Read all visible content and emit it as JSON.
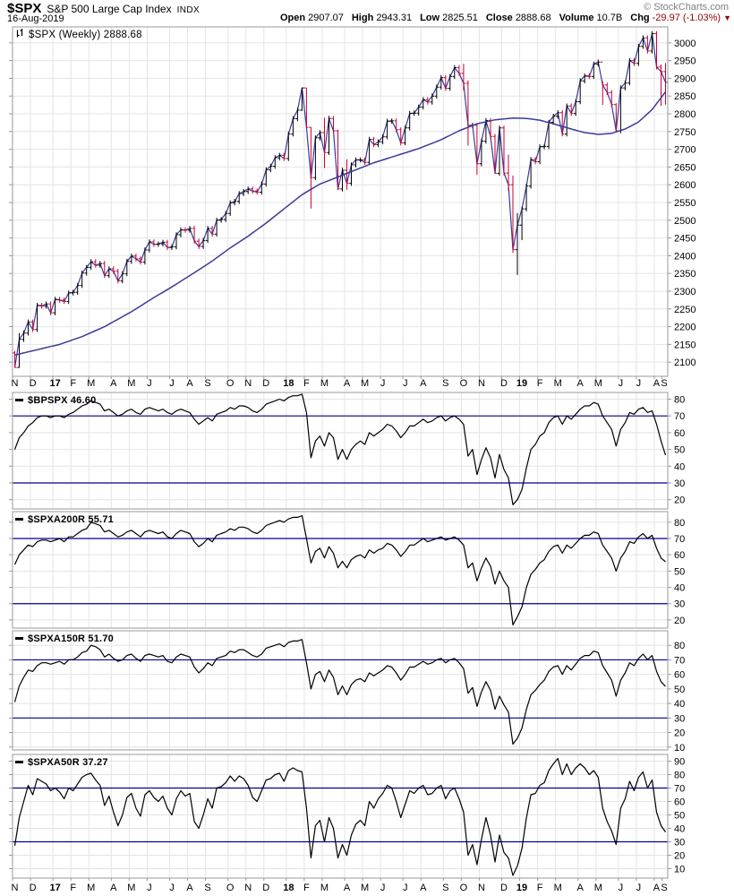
{
  "header": {
    "symbol": "$SPX",
    "name": "S&P 500 Large Cap Index",
    "exchange": "INDX",
    "copyright": "© StockCharts.com",
    "date": "16-Aug-2019",
    "quote": {
      "open_label": "Open",
      "open": "2907.07",
      "high_label": "High",
      "high": "2943.31",
      "low_label": "Low",
      "low": "2825.51",
      "close_label": "Close",
      "close": "2888.68",
      "volume_label": "Volume",
      "volume": "10.7B",
      "chg_label": "Chg",
      "chg": "-29.97 (-1.03%)",
      "chg_arrow": "▼"
    }
  },
  "legends": {
    "main": "$SPX (Weekly) 2888.68",
    "bpspx": "$BPSPX 46.60",
    "a200": "$SPXA200R 55.71",
    "a150": "$SPXA150R 51.70",
    "a50": "$SPXA50R 37.27"
  },
  "colors": {
    "up_bar": "#000000",
    "down_bar": "#cc0033",
    "close_line": "#3a3a9c",
    "ma_line": "#3a3a9c",
    "hline": "#000099",
    "indicator_line": "#000000",
    "grid": "#e4e4e4",
    "border": "#999999",
    "axis_text": "#000000",
    "chg_negative": "#990000",
    "copyright": "#808080"
  },
  "chart_data": {
    "type": "multi-panel",
    "x_axis": {
      "weeks_total": 146,
      "start": "Nov 2016",
      "end": "Aug 2019",
      "months": [
        {
          "label": "N",
          "week": 0
        },
        {
          "label": "D",
          "week": 4
        },
        {
          "label": "17",
          "week": 9,
          "year": true
        },
        {
          "label": "F",
          "week": 13
        },
        {
          "label": "M",
          "week": 17
        },
        {
          "label": "A",
          "week": 22
        },
        {
          "label": "M",
          "week": 26
        },
        {
          "label": "J",
          "week": 30
        },
        {
          "label": "J",
          "week": 35
        },
        {
          "label": "A",
          "week": 39
        },
        {
          "label": "S",
          "week": 43
        },
        {
          "label": "O",
          "week": 48
        },
        {
          "label": "N",
          "week": 52
        },
        {
          "label": "D",
          "week": 56
        },
        {
          "label": "18",
          "week": 61,
          "year": true
        },
        {
          "label": "F",
          "week": 65
        },
        {
          "label": "M",
          "week": 69
        },
        {
          "label": "A",
          "week": 74
        },
        {
          "label": "M",
          "week": 78
        },
        {
          "label": "J",
          "week": 82
        },
        {
          "label": "J",
          "week": 87
        },
        {
          "label": "A",
          "week": 91
        },
        {
          "label": "S",
          "week": 96
        },
        {
          "label": "O",
          "week": 100
        },
        {
          "label": "N",
          "week": 104
        },
        {
          "label": "D",
          "week": 109
        },
        {
          "label": "19",
          "week": 113,
          "year": true
        },
        {
          "label": "F",
          "week": 117
        },
        {
          "label": "M",
          "week": 121
        },
        {
          "label": "A",
          "week": 126
        },
        {
          "label": "M",
          "week": 130
        },
        {
          "label": "J",
          "week": 135
        },
        {
          "label": "J",
          "week": 139
        },
        {
          "label": "A",
          "week": 143
        },
        {
          "label": "S",
          "week": 146
        }
      ]
    },
    "main": {
      "name": "main-price-panel",
      "type": "ohlc",
      "title": "$SPX (Weekly)",
      "last": 2888.68,
      "y_range": [
        2060,
        3045
      ],
      "y_ticks": [
        2100,
        2150,
        2200,
        2250,
        2300,
        2350,
        2400,
        2450,
        2500,
        2550,
        2600,
        2650,
        2700,
        2750,
        2800,
        2850,
        2900,
        2950,
        3000
      ],
      "first_open": 2126,
      "close": [
        2085,
        2164,
        2182,
        2213,
        2192,
        2260,
        2258,
        2264,
        2239,
        2277,
        2275,
        2271,
        2295,
        2297,
        2316,
        2351,
        2367,
        2383,
        2373,
        2378,
        2344,
        2363,
        2356,
        2329,
        2349,
        2384,
        2399,
        2391,
        2382,
        2416,
        2439,
        2432,
        2433,
        2438,
        2423,
        2425,
        2459,
        2473,
        2472,
        2477,
        2441,
        2426,
        2443,
        2477,
        2461,
        2500,
        2502,
        2519,
        2549,
        2553,
        2575,
        2581,
        2588,
        2582,
        2579,
        2602,
        2642,
        2652,
        2676,
        2683,
        2674,
        2743,
        2786,
        2810,
        2873,
        2762,
        2620,
        2732,
        2747,
        2691,
        2787,
        2752,
        2588,
        2641,
        2604,
        2656,
        2670,
        2670,
        2663,
        2728,
        2713,
        2721,
        2735,
        2779,
        2780,
        2755,
        2718,
        2760,
        2801,
        2802,
        2819,
        2840,
        2833,
        2850,
        2875,
        2902,
        2872,
        2905,
        2930,
        2914,
        2886,
        2767,
        2768,
        2659,
        2723,
        2781,
        2736,
        2632,
        2760,
        2633,
        2600,
        2417,
        2486,
        2532,
        2596,
        2671,
        2665,
        2707,
        2708,
        2776,
        2793,
        2803,
        2743,
        2822,
        2801,
        2834,
        2893,
        2907,
        2905,
        2940,
        2946,
        2881,
        2860,
        2826,
        2752,
        2873,
        2887,
        2950,
        2942,
        2990,
        3014,
        2977,
        3026,
        2932,
        2919,
        2888.68
      ],
      "wick_overrides": {
        "0": [
          2132,
          2084
        ],
        "1": [
          2182,
          2084
        ],
        "64": [
          2873,
          2808
        ],
        "65": [
          2873,
          2760
        ],
        "66": [
          2763,
          2533
        ],
        "69": [
          2789,
          2647
        ],
        "72": [
          2755,
          2585
        ],
        "74": [
          2672,
          2586
        ],
        "100": [
          2941,
          2866
        ],
        "101": [
          2894,
          2710
        ],
        "103": [
          2772,
          2628
        ],
        "107": [
          2743,
          2631
        ],
        "110": [
          2685,
          2583
        ],
        "111": [
          2626,
          2408
        ],
        "112": [
          2520,
          2346
        ],
        "113": [
          2538,
          2444
        ],
        "131": [
          2892,
          2825
        ],
        "134": [
          2830,
          2750
        ],
        "144": [
          2939,
          2822
        ],
        "145": [
          2943,
          2826
        ]
      },
      "ma_anchors": [
        [
          0,
          2120
        ],
        [
          5,
          2135
        ],
        [
          10,
          2150
        ],
        [
          15,
          2172
        ],
        [
          20,
          2200
        ],
        [
          26,
          2242
        ],
        [
          31,
          2282
        ],
        [
          35,
          2312
        ],
        [
          40,
          2352
        ],
        [
          44,
          2385
        ],
        [
          48,
          2422
        ],
        [
          52,
          2455
        ],
        [
          56,
          2492
        ],
        [
          61,
          2542
        ],
        [
          64,
          2572
        ],
        [
          68,
          2602
        ],
        [
          72,
          2622
        ],
        [
          76,
          2642
        ],
        [
          80,
          2662
        ],
        [
          85,
          2682
        ],
        [
          90,
          2702
        ],
        [
          95,
          2727
        ],
        [
          99,
          2752
        ],
        [
          103,
          2772
        ],
        [
          107,
          2783
        ],
        [
          111,
          2788
        ],
        [
          114,
          2787
        ],
        [
          117,
          2782
        ],
        [
          120,
          2772
        ],
        [
          124,
          2757
        ],
        [
          127,
          2747
        ],
        [
          130,
          2742
        ],
        [
          133,
          2745
        ],
        [
          136,
          2757
        ],
        [
          139,
          2777
        ],
        [
          142,
          2812
        ],
        [
          145,
          2862
        ]
      ]
    },
    "indicators": [
      {
        "name": "bpspx-panel",
        "type": "line",
        "symbol": "$BPSPX",
        "value": 46.6,
        "y_range": [
          14.5,
          84
        ],
        "y_ticks": [
          20,
          30,
          40,
          50,
          60,
          70,
          80
        ],
        "hlines": [
          70,
          30
        ],
        "values": [
          50,
          57,
          60,
          64,
          66,
          69,
          70,
          70,
          69,
          70,
          70,
          69,
          71,
          72,
          74,
          76,
          77,
          79,
          78,
          77,
          73,
          74,
          72,
          70,
          71,
          73,
          74,
          72,
          71,
          74,
          75,
          74,
          73,
          74,
          72,
          71,
          73,
          74,
          73,
          72,
          68,
          65,
          67,
          69,
          67,
          71,
          72,
          73,
          75,
          74,
          76,
          76,
          75,
          73,
          72,
          74,
          77,
          78,
          79,
          80,
          79,
          81,
          82,
          82,
          83,
          72,
          45,
          55,
          58,
          52,
          60,
          57,
          44,
          50,
          44,
          50,
          53,
          55,
          53,
          60,
          58,
          60,
          62,
          65,
          64,
          61,
          57,
          60,
          64,
          64,
          66,
          68,
          66,
          67,
          69,
          70,
          67,
          69,
          70,
          68,
          65,
          46,
          50,
          35,
          44,
          51,
          45,
          33,
          47,
          38,
          33,
          17,
          20,
          26,
          39,
          50,
          53,
          58,
          60,
          66,
          69,
          70,
          65,
          70,
          68,
          71,
          74,
          76,
          76,
          78,
          77,
          70,
          66,
          62,
          52,
          62,
          66,
          72,
          71,
          74,
          75,
          72,
          73,
          65,
          55,
          46.6
        ]
      },
      {
        "name": "spxa200r-panel",
        "type": "line",
        "symbol": "$SPXA200R",
        "value": 55.71,
        "y_range": [
          15,
          86.5
        ],
        "y_ticks": [
          20,
          30,
          40,
          50,
          60,
          70,
          80
        ],
        "hlines": [
          70,
          30
        ],
        "values": [
          54,
          60,
          63,
          66,
          65,
          68,
          69,
          69,
          68,
          69,
          70,
          68,
          71,
          71,
          73,
          75,
          76,
          80,
          79,
          78,
          74,
          75,
          73,
          71,
          72,
          74,
          75,
          73,
          71,
          74,
          75,
          74,
          73,
          74,
          71,
          70,
          73,
          75,
          74,
          73,
          68,
          65,
          67,
          70,
          68,
          72,
          73,
          74,
          76,
          75,
          77,
          77,
          76,
          74,
          73,
          75,
          78,
          79,
          80,
          81,
          80,
          82,
          83,
          83,
          84,
          70,
          55,
          62,
          64,
          58,
          65,
          61,
          52,
          56,
          52,
          57,
          59,
          60,
          58,
          63,
          61,
          63,
          64,
          67,
          66,
          63,
          59,
          62,
          66,
          66,
          68,
          70,
          68,
          69,
          70,
          71,
          69,
          70,
          71,
          69,
          66,
          52,
          55,
          44,
          52,
          58,
          53,
          42,
          50,
          44,
          40,
          17,
          22,
          28,
          40,
          48,
          51,
          55,
          57,
          62,
          65,
          66,
          61,
          66,
          64,
          67,
          70,
          72,
          72,
          74,
          73,
          66,
          62,
          58,
          50,
          58,
          62,
          68,
          67,
          71,
          73,
          70,
          72,
          64,
          58,
          55.71
        ]
      },
      {
        "name": "spxa150r-panel",
        "type": "line",
        "symbol": "$SPXA150R",
        "value": 51.7,
        "y_range": [
          8,
          90
        ],
        "y_ticks": [
          10,
          20,
          30,
          40,
          50,
          60,
          70,
          80
        ],
        "hlines": [
          70,
          30
        ],
        "values": [
          41,
          52,
          58,
          63,
          62,
          66,
          68,
          68,
          67,
          68,
          69,
          67,
          70,
          70,
          72,
          75,
          76,
          80,
          79,
          77,
          72,
          74,
          71,
          69,
          70,
          73,
          74,
          71,
          69,
          73,
          74,
          73,
          72,
          73,
          69,
          68,
          72,
          74,
          73,
          72,
          65,
          61,
          64,
          68,
          66,
          71,
          72,
          73,
          76,
          75,
          77,
          77,
          75,
          73,
          72,
          74,
          78,
          79,
          80,
          81,
          79,
          82,
          83,
          83,
          84,
          68,
          50,
          60,
          62,
          55,
          63,
          58,
          46,
          52,
          46,
          53,
          56,
          57,
          55,
          61,
          59,
          61,
          63,
          66,
          65,
          61,
          56,
          60,
          65,
          65,
          67,
          69,
          67,
          68,
          70,
          71,
          68,
          70,
          71,
          68,
          64,
          47,
          51,
          38,
          48,
          55,
          49,
          36,
          45,
          39,
          34,
          12,
          16,
          23,
          36,
          46,
          49,
          53,
          56,
          62,
          65,
          66,
          60,
          66,
          63,
          67,
          71,
          73,
          73,
          76,
          75,
          66,
          61,
          56,
          45,
          56,
          61,
          68,
          66,
          71,
          74,
          70,
          73,
          62,
          55,
          51.7
        ]
      },
      {
        "name": "spxa50r-panel",
        "type": "line",
        "symbol": "$SPXA50R",
        "value": 37.27,
        "y_range": [
          3,
          95
        ],
        "y_ticks": [
          10,
          20,
          30,
          40,
          50,
          60,
          70,
          80,
          90
        ],
        "hlines": [
          70,
          30
        ],
        "values": [
          27,
          48,
          60,
          72,
          65,
          77,
          75,
          73,
          68,
          70,
          67,
          62,
          70,
          68,
          73,
          78,
          80,
          81,
          76,
          72,
          57,
          64,
          52,
          42,
          50,
          63,
          66,
          55,
          49,
          65,
          68,
          63,
          60,
          64,
          55,
          50,
          62,
          68,
          64,
          66,
          45,
          40,
          50,
          62,
          55,
          70,
          71,
          74,
          79,
          75,
          79,
          77,
          72,
          63,
          60,
          68,
          76,
          77,
          80,
          81,
          75,
          83,
          85,
          83,
          82,
          55,
          18,
          42,
          46,
          30,
          48,
          40,
          18,
          28,
          20,
          35,
          43,
          46,
          42,
          60,
          55,
          62,
          66,
          72,
          70,
          60,
          48,
          58,
          68,
          66,
          70,
          72,
          65,
          66,
          70,
          72,
          62,
          68,
          70,
          62,
          52,
          20,
          28,
          13,
          32,
          48,
          35,
          15,
          35,
          22,
          18,
          5,
          12,
          25,
          48,
          65,
          66,
          72,
          74,
          83,
          88,
          92,
          80,
          88,
          80,
          85,
          88,
          85,
          80,
          83,
          78,
          55,
          45,
          38,
          28,
          55,
          62,
          75,
          68,
          78,
          82,
          70,
          76,
          52,
          42,
          37.27
        ]
      }
    ]
  }
}
